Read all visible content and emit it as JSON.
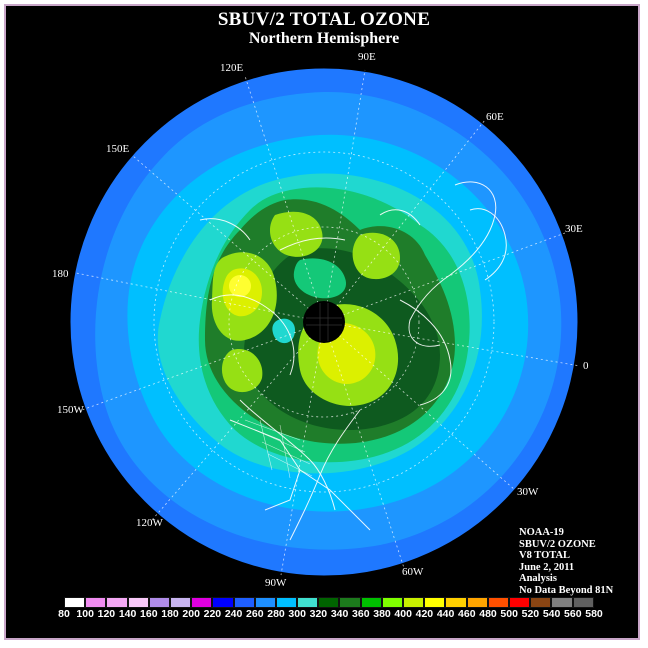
{
  "title": "SBUV/2 TOTAL OZONE",
  "subtitle": "Northern Hemisphere",
  "longitude_labels": [
    "120E",
    "90E",
    "60E",
    "150E",
    "30E",
    "180",
    "0",
    "150W",
    "30W",
    "120W",
    "60W",
    "90W"
  ],
  "info": {
    "satellite": "NOAA-19",
    "instrument": "SBUV/2 OZONE",
    "product": "V8 TOTAL",
    "date": "June 2, 2011",
    "type": "Analysis",
    "note": "No Data Beyond 81N"
  },
  "colorbar": {
    "ticks": [
      "80",
      "100",
      "120",
      "140",
      "160",
      "180",
      "200",
      "220",
      "240",
      "260",
      "280",
      "300",
      "320",
      "340",
      "360",
      "380",
      "400",
      "420",
      "440",
      "460",
      "480",
      "500",
      "520",
      "540",
      "560",
      "580"
    ],
    "colors": [
      "#ffffff",
      "#f08cf0",
      "#f4a8f4",
      "#f8c8f8",
      "#b08ce8",
      "#c8b4f0",
      "#e000e0",
      "#0000ff",
      "#1f5fff",
      "#1e90ff",
      "#00bfff",
      "#40e0d0",
      "#006400",
      "#1c7a1c",
      "#00c000",
      "#7fff00",
      "#c8f000",
      "#ffff00",
      "#ffd000",
      "#ffa500",
      "#ff5000",
      "#ff0000",
      "#8b4513",
      "#808080",
      "#606060"
    ]
  },
  "map_colors": {
    "ocean_edge": "#1f78ff",
    "level_280": "#1e96ff",
    "level_300": "#00bfff",
    "level_320": "#20d8d0",
    "level_340": "#14c878",
    "level_360": "#1f7d2a",
    "level_380": "#0e5a1f",
    "level_400": "#96e014",
    "level_420": "#dcf000",
    "level_440": "#ffff30",
    "pole_hole": "#000000"
  }
}
